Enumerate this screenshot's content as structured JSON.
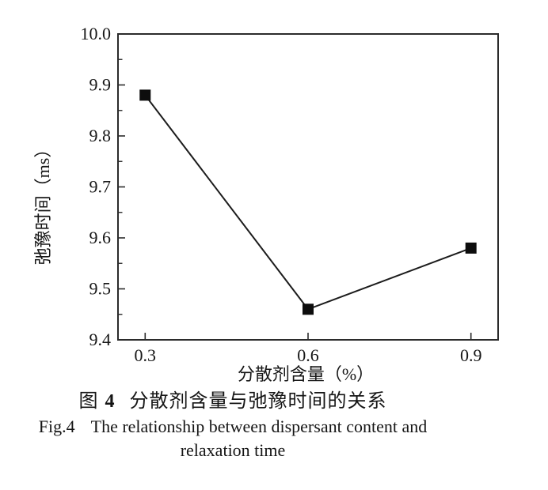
{
  "chart_data": {
    "type": "line",
    "x": [
      0.3,
      0.6,
      0.9
    ],
    "y": [
      9.88,
      9.46,
      9.58
    ],
    "series": [
      {
        "name": "relaxation time",
        "values": [
          9.88,
          9.46,
          9.58
        ]
      }
    ],
    "xlabel": "分散剂含量（%）",
    "ylabel": "弛豫时间（ms）",
    "xlim": [
      0.25,
      0.95
    ],
    "ylim": [
      9.4,
      10.0
    ],
    "x_ticks": [
      0.3,
      0.6,
      0.9
    ],
    "y_ticks": [
      9.4,
      9.5,
      9.6,
      9.7,
      9.8,
      9.9,
      10.0
    ],
    "y_minor_tick_step": 0.05,
    "x_tick_decimals": 1,
    "y_tick_decimals": 1,
    "marker": "filled-square",
    "grid": false,
    "legend": false,
    "line_color": "#1c1c1c",
    "marker_color": "#0d0d0d",
    "axis_color": "#2b2b2b",
    "tick_label_color": "#161616"
  },
  "caption": {
    "cn_fig_label": "图",
    "cn_fig_number": "4",
    "cn_title": "分散剂含量与弛豫时间的关系",
    "en_fig_label": "Fig.4",
    "en_title_line1": "The relationship between dispersant content and",
    "en_title_line2": "relaxation time"
  }
}
